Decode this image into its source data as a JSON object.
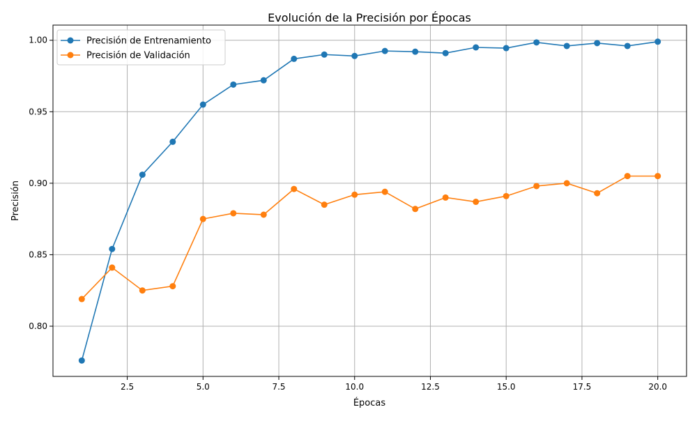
{
  "chart_data": {
    "type": "line",
    "title": "Evolución de la Precisión por Épocas",
    "xlabel": "Épocas",
    "ylabel": "Precisión",
    "xlim": [
      0.05,
      20.95
    ],
    "ylim": [
      0.7649,
      1.0106
    ],
    "xticks": [
      2.5,
      5.0,
      7.5,
      10.0,
      12.5,
      15.0,
      17.5,
      20.0
    ],
    "xtick_labels": [
      "2.5",
      "5.0",
      "7.5",
      "10.0",
      "12.5",
      "15.0",
      "17.5",
      "20.0"
    ],
    "yticks": [
      0.8,
      0.85,
      0.9,
      0.95,
      1.0
    ],
    "ytick_labels": [
      "0.80",
      "0.85",
      "0.90",
      "0.95",
      "1.00"
    ],
    "grid": true,
    "legend_position": "top-left",
    "x": [
      1,
      2,
      3,
      4,
      5,
      6,
      7,
      8,
      9,
      10,
      11,
      12,
      13,
      14,
      15,
      16,
      17,
      18,
      19,
      20
    ],
    "series": [
      {
        "name": "Precisión de Entrenamiento",
        "color": "#1f77b4",
        "marker": "circle",
        "values": [
          0.776,
          0.854,
          0.906,
          0.929,
          0.955,
          0.969,
          0.972,
          0.987,
          0.99,
          0.989,
          0.9925,
          0.992,
          0.991,
          0.995,
          0.9945,
          0.9985,
          0.996,
          0.998,
          0.996,
          0.999
        ]
      },
      {
        "name": "Precisión de Validación",
        "color": "#ff7f0e",
        "marker": "circle",
        "values": [
          0.819,
          0.841,
          0.825,
          0.828,
          0.875,
          0.879,
          0.878,
          0.896,
          0.885,
          0.892,
          0.894,
          0.882,
          0.89,
          0.887,
          0.891,
          0.898,
          0.9,
          0.893,
          0.905,
          0.905
        ]
      }
    ]
  }
}
